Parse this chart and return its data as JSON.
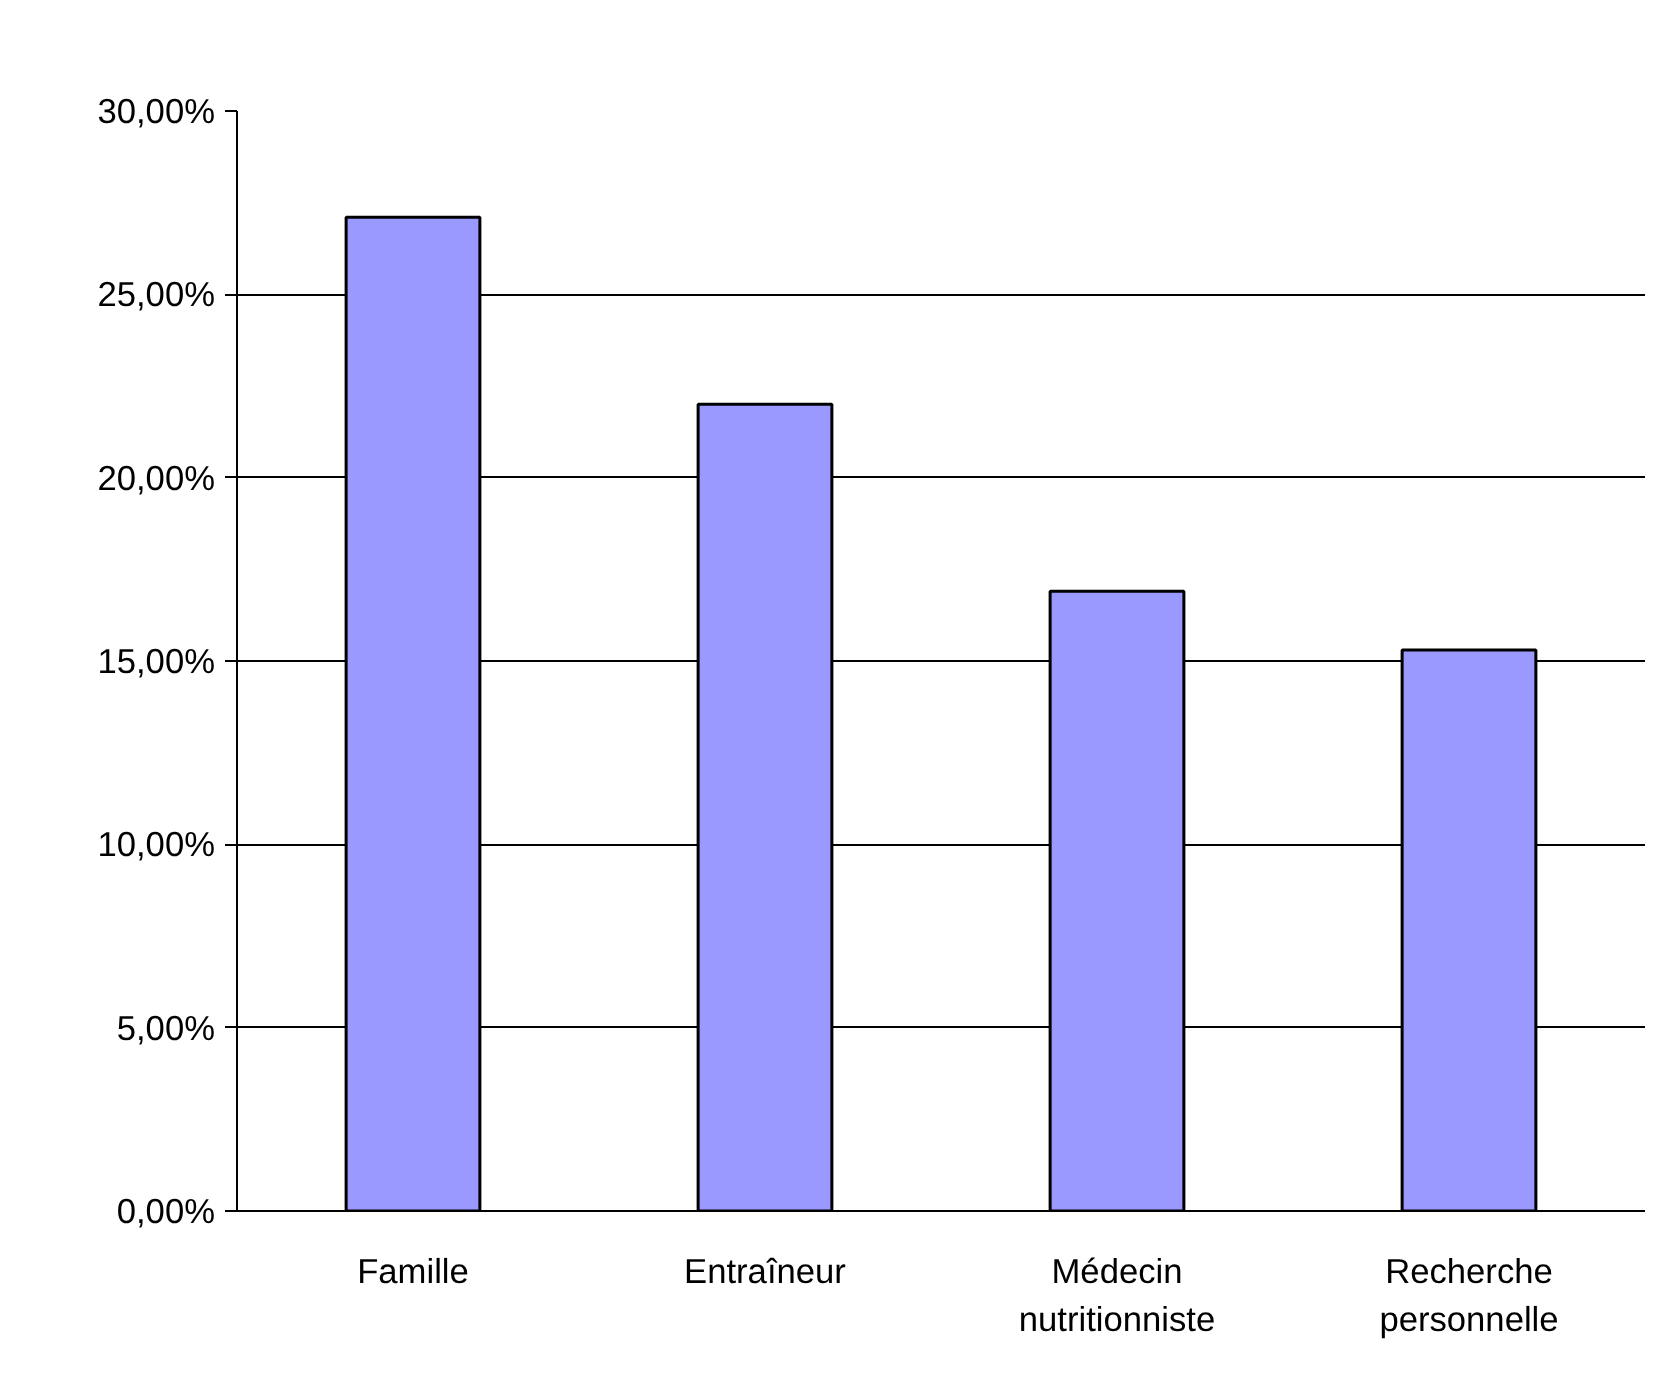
{
  "chart_data": {
    "type": "bar",
    "categories": [
      "Famille",
      "Entraîneur",
      "Médecin nutritionniste",
      "Recherche personnelle"
    ],
    "values": [
      27.1,
      22.0,
      16.9,
      15.3
    ],
    "color": "#9999ff",
    "ylim": [
      0,
      30
    ],
    "yticks": [
      {
        "value": 0,
        "label": "0,00%"
      },
      {
        "value": 5,
        "label": "5,00%"
      },
      {
        "value": 10,
        "label": "10,00%"
      },
      {
        "value": 15,
        "label": "15,00%"
      },
      {
        "value": 20,
        "label": "20,00%"
      },
      {
        "value": 25,
        "label": "25,00%"
      },
      {
        "value": 30,
        "label": "30,00%"
      }
    ],
    "grid": "y"
  }
}
